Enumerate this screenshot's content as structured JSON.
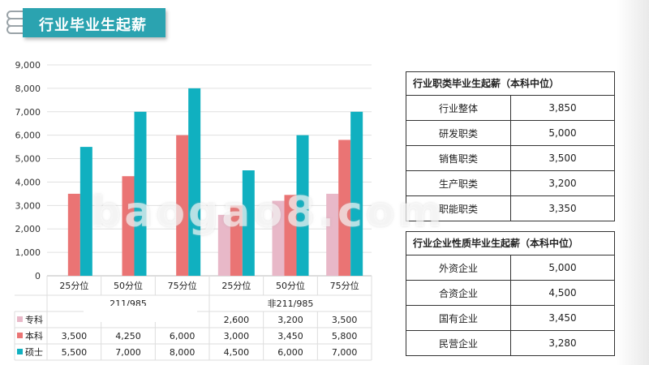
{
  "title": "行业毕业生起薪",
  "chart_data": {
    "type": "bar",
    "y_ticks": [
      "9,000",
      "8,000",
      "7,000",
      "6,000",
      "5,000",
      "4,000",
      "3,000",
      "2,000",
      "1,000",
      "0"
    ],
    "ylim": [
      0,
      9000
    ],
    "groups": [
      "211/985",
      "非211/985"
    ],
    "categories": [
      "25分位",
      "50分位",
      "75分位",
      "25分位",
      "50分位",
      "75分位"
    ],
    "series": [
      {
        "name": "专科",
        "color": "#e8b8c8",
        "values": [
          null,
          null,
          null,
          2600,
          3200,
          3500
        ],
        "labels": [
          "",
          "",
          "",
          "2,600",
          "3,200",
          "3,500"
        ]
      },
      {
        "name": "本科",
        "color": "#ea7474",
        "values": [
          3500,
          4250,
          6000,
          3000,
          3450,
          5800
        ],
        "labels": [
          "3,500",
          "4,250",
          "6,000",
          "3,000",
          "3,450",
          "5,800"
        ]
      },
      {
        "name": "硕士",
        "color": "#10b0c0",
        "values": [
          5500,
          7000,
          8000,
          4500,
          6000,
          7000
        ],
        "labels": [
          "5,500",
          "7,000",
          "8,000",
          "4,500",
          "6,000",
          "7,000"
        ]
      }
    ]
  },
  "table1": {
    "title": "行业职类毕业生起薪（本科中位）",
    "rows": [
      {
        "label": "行业整体",
        "value": "3,850"
      },
      {
        "label": "研发职类",
        "value": "5,000"
      },
      {
        "label": "销售职类",
        "value": "3,500"
      },
      {
        "label": "生产职类",
        "value": "3,200"
      },
      {
        "label": "职能职类",
        "value": "3,350"
      }
    ]
  },
  "table2": {
    "title": "行业企业性质毕业生起薪（本科中位）",
    "rows": [
      {
        "label": "外资企业",
        "value": "5,000"
      },
      {
        "label": "合资企业",
        "value": "4,500"
      },
      {
        "label": "国有企业",
        "value": "3,450"
      },
      {
        "label": "民营企业",
        "value": "3,280"
      }
    ]
  },
  "watermark": "baogao8.com"
}
